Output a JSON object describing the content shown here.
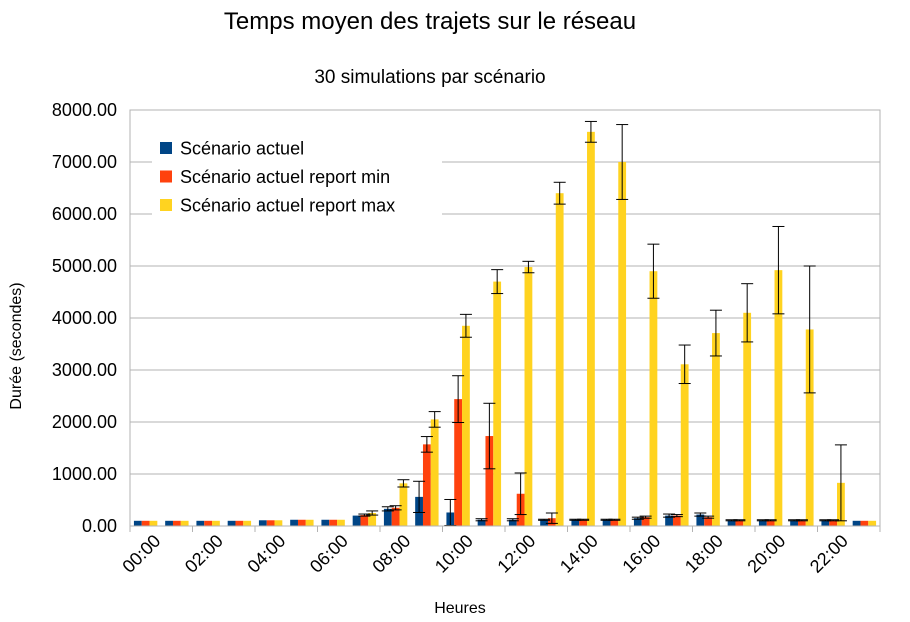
{
  "chart_data": {
    "type": "bar",
    "title": "Temps moyen des trajets sur le réseau",
    "subtitle": "30 simulations par scénario",
    "xlabel": "Heures",
    "ylabel": "Durée (secondes)",
    "ylim": [
      0,
      8000
    ],
    "yticks": [
      "0.00",
      "1000.00",
      "2000.00",
      "3000.00",
      "4000.00",
      "5000.00",
      "6000.00",
      "7000.00",
      "8000.00"
    ],
    "grid": true,
    "legend": "top-left",
    "x_tick_labels": [
      "00:00",
      "02:00",
      "04:00",
      "06:00",
      "08:00",
      "10:00",
      "12:00",
      "14:00",
      "16:00",
      "18:00",
      "20:00",
      "22:00"
    ],
    "categories": [
      "00:00",
      "01:00",
      "02:00",
      "03:00",
      "04:00",
      "05:00",
      "06:00",
      "07:00",
      "08:00",
      "09:00",
      "10:00",
      "11:00",
      "12:00",
      "13:00",
      "14:00",
      "15:00",
      "16:00",
      "17:00",
      "18:00",
      "19:00",
      "20:00",
      "21:00",
      "22:00",
      "23:00"
    ],
    "series": [
      {
        "name": "Scénario actuel",
        "color": "#004586",
        "values": [
          100,
          100,
          100,
          100,
          110,
          120,
          120,
          200,
          330,
          560,
          260,
          120,
          120,
          120,
          120,
          120,
          150,
          200,
          220,
          110,
          110,
          110,
          110,
          100
        ],
        "errors": [
          0,
          0,
          0,
          0,
          0,
          0,
          0,
          0,
          40,
          300,
          250,
          20,
          20,
          10,
          10,
          10,
          20,
          30,
          30,
          10,
          10,
          10,
          10,
          0
        ]
      },
      {
        "name": "Scénario actuel report min",
        "color": "#ff420e",
        "values": [
          100,
          100,
          100,
          100,
          110,
          120,
          120,
          210,
          350,
          1570,
          2440,
          1730,
          620,
          150,
          120,
          120,
          170,
          200,
          170,
          110,
          110,
          110,
          110,
          100
        ],
        "errors": [
          0,
          0,
          0,
          0,
          0,
          0,
          0,
          20,
          40,
          150,
          450,
          630,
          400,
          100,
          10,
          10,
          20,
          20,
          20,
          10,
          10,
          10,
          10,
          0
        ]
      },
      {
        "name": "Scénario actuel report max",
        "color": "#ffd320",
        "values": [
          100,
          100,
          100,
          100,
          110,
          120,
          120,
          250,
          820,
          2050,
          3850,
          4700,
          4980,
          6400,
          7580,
          7000,
          4900,
          3110,
          3710,
          4100,
          4920,
          3780,
          830,
          100
        ],
        "errors": [
          0,
          0,
          0,
          0,
          0,
          0,
          0,
          40,
          70,
          150,
          220,
          230,
          110,
          210,
          200,
          720,
          520,
          370,
          440,
          560,
          840,
          1220,
          730,
          0
        ]
      }
    ]
  }
}
